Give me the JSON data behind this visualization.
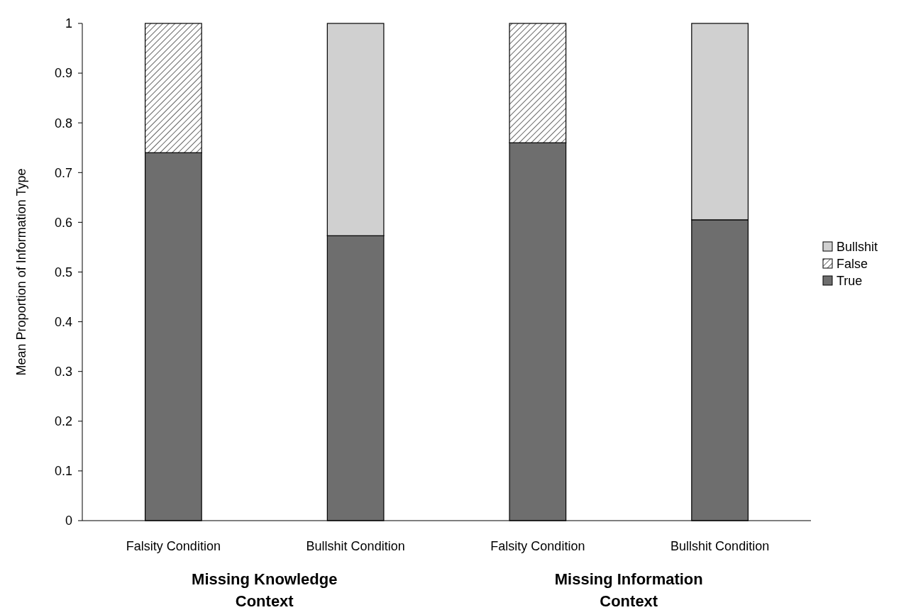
{
  "chart_data": {
    "type": "bar",
    "stacked": true,
    "ylabel": "Mean Proportion of Information Type",
    "categories": [
      "Falsity Condition",
      "Bullshit Condition",
      "Falsity Condition",
      "Bullshit Condition"
    ],
    "series": [
      {
        "name": "True",
        "color": "#6e6e6e",
        "values": [
          0.74,
          0.573,
          0.76,
          0.605
        ]
      },
      {
        "name": "False",
        "color": "#000000",
        "values": [
          0.26,
          0,
          0.24,
          0
        ]
      },
      {
        "name": "Bullshit",
        "color": "#d0d0d0",
        "values": [
          0,
          0.427,
          0,
          0.395
        ]
      }
    ],
    "ylim": [
      0,
      1
    ],
    "yticks": [
      0,
      0.1,
      0.2,
      0.3,
      0.4,
      0.5,
      0.6,
      0.7,
      0.8,
      0.9,
      1
    ],
    "annotations": [
      "Missing Knowledge Context",
      "Missing Information Context"
    ],
    "legend": "right",
    "grid": false
  }
}
